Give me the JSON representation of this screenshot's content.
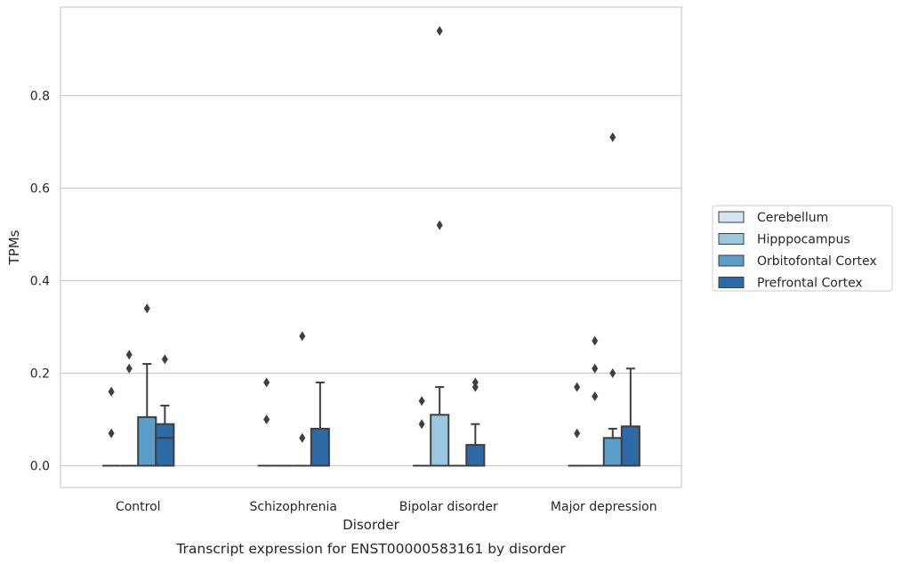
{
  "chart_data": {
    "type": "box",
    "caption": "Transcript expression for ENST00000583161 by disorder",
    "xlabel": "Disorder",
    "ylabel": "TPMs",
    "ylim": [
      -0.047,
      0.99
    ],
    "yticks": [
      "0.0",
      "0.2",
      "0.4",
      "0.6",
      "0.8"
    ],
    "ytick_values": [
      0.0,
      0.2,
      0.4,
      0.6,
      0.8
    ],
    "grid": "horizontal",
    "legend_position": "right",
    "categories": [
      "Control",
      "Schizophrenia",
      "Bipolar disorder",
      "Major depression"
    ],
    "series": [
      {
        "name": "Cerebellum",
        "color": "#d3e4f3",
        "boxes": [
          {
            "q1": 0,
            "median": 0,
            "q3": 0,
            "whisker_low": 0,
            "whisker_high": 0,
            "outliers": [
              0.16,
              0.07
            ]
          },
          {
            "q1": 0,
            "median": 0,
            "q3": 0,
            "whisker_low": 0,
            "whisker_high": 0,
            "outliers": [
              0.18,
              0.1
            ]
          },
          {
            "q1": 0,
            "median": 0,
            "q3": 0,
            "whisker_low": 0,
            "whisker_high": 0,
            "outliers": [
              0.14,
              0.09
            ]
          },
          {
            "q1": 0,
            "median": 0,
            "q3": 0,
            "whisker_low": 0,
            "whisker_high": 0,
            "outliers": [
              0.17,
              0.07
            ]
          }
        ]
      },
      {
        "name": "Hipppocampus",
        "color": "#9ac8e0",
        "boxes": [
          {
            "q1": 0,
            "median": 0,
            "q3": 0,
            "whisker_low": 0,
            "whisker_high": 0,
            "outliers": [
              0.24,
              0.21
            ]
          },
          {
            "q1": 0,
            "median": 0,
            "q3": 0,
            "whisker_low": 0,
            "whisker_high": 0,
            "outliers": []
          },
          {
            "q1": 0,
            "median": 0,
            "q3": 0.11,
            "whisker_low": 0,
            "whisker_high": 0.17,
            "outliers": [
              0.94,
              0.52
            ]
          },
          {
            "q1": 0,
            "median": 0,
            "q3": 0,
            "whisker_low": 0,
            "whisker_high": 0,
            "outliers": [
              0.27,
              0.21,
              0.15
            ]
          }
        ]
      },
      {
        "name": "Orbitofontal Cortex",
        "color": "#5a9ec9",
        "boxes": [
          {
            "q1": 0,
            "median": 0,
            "q3": 0.105,
            "whisker_low": 0,
            "whisker_high": 0.22,
            "outliers": [
              0.34
            ]
          },
          {
            "q1": 0,
            "median": 0,
            "q3": 0,
            "whisker_low": 0,
            "whisker_high": 0,
            "outliers": [
              0.28,
              0.06
            ]
          },
          {
            "q1": 0,
            "median": 0,
            "q3": 0,
            "whisker_low": 0,
            "whisker_high": 0,
            "outliers": []
          },
          {
            "q1": 0,
            "median": 0,
            "q3": 0.06,
            "whisker_low": 0,
            "whisker_high": 0.08,
            "outliers": [
              0.71,
              0.2
            ]
          }
        ]
      },
      {
        "name": "Prefrontal Cortex",
        "color": "#2c6aa6",
        "boxes": [
          {
            "q1": 0,
            "median": 0.06,
            "q3": 0.09,
            "whisker_low": 0,
            "whisker_high": 0.13,
            "outliers": [
              0.23
            ]
          },
          {
            "q1": 0,
            "median": 0,
            "q3": 0.08,
            "whisker_low": 0,
            "whisker_high": 0.18,
            "outliers": []
          },
          {
            "q1": 0,
            "median": 0,
            "q3": 0.045,
            "whisker_low": 0,
            "whisker_high": 0.09,
            "outliers": [
              0.18,
              0.17
            ]
          },
          {
            "q1": 0,
            "median": 0,
            "q3": 0.085,
            "whisker_low": 0,
            "whisker_high": 0.21,
            "outliers": []
          }
        ]
      }
    ]
  }
}
